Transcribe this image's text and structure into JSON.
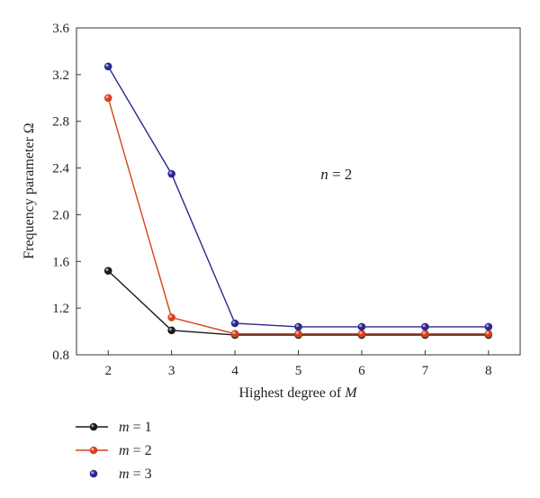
{
  "chart_data": {
    "type": "line",
    "title": "",
    "xlabel": "Highest degree of M",
    "xlabel_parts": [
      "Highest degree of ",
      "M"
    ],
    "ylabel": "Frequency parameter Ω",
    "x": [
      2,
      3,
      4,
      5,
      6,
      7,
      8
    ],
    "xlim": [
      1.5,
      8.5
    ],
    "ylim": [
      0.8,
      3.6
    ],
    "xticks": [
      "2",
      "3",
      "4",
      "5",
      "6",
      "7",
      "8"
    ],
    "yticks": [
      "0.8",
      "1.2",
      "1.6",
      "2.0",
      "2.4",
      "2.8",
      "3.2",
      "3.6"
    ],
    "grid": false,
    "annotation": {
      "text": "n = 2",
      "var": "n",
      "rest": " = 2",
      "x": 5.6,
      "y": 2.35
    },
    "legend_position": "bottom-left, below plot",
    "series": [
      {
        "name": "m = 1",
        "var": "m",
        "rest": " = 1",
        "color": "#1a1a1a",
        "line": true,
        "values": [
          1.52,
          1.01,
          0.97,
          0.97,
          0.97,
          0.97,
          0.97
        ]
      },
      {
        "name": "m = 2",
        "var": "m",
        "rest": " = 2",
        "color": "#d8401c",
        "line": true,
        "values": [
          3.0,
          1.12,
          0.98,
          0.98,
          0.98,
          0.98,
          0.98
        ]
      },
      {
        "name": "m = 3",
        "var": "m",
        "rest": " = 3",
        "color": "#2a2890",
        "line": false,
        "values": [
          3.27,
          2.35,
          1.07,
          1.04,
          1.04,
          1.04,
          1.04
        ]
      }
    ]
  }
}
